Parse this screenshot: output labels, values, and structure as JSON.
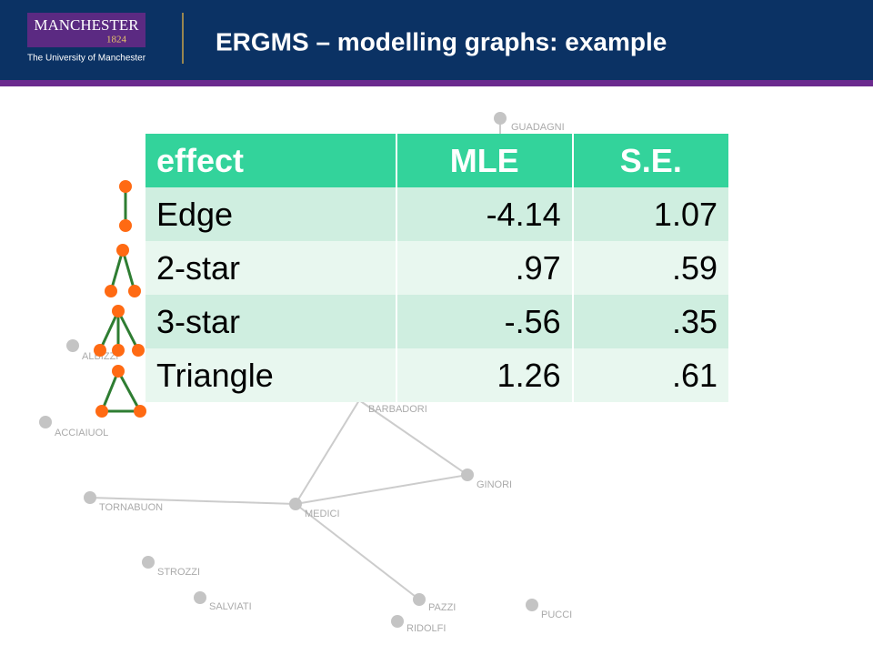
{
  "header": {
    "logo_name": "MANCHESTER",
    "logo_year": "1824",
    "logo_subtitle": "The University of Manchester",
    "title": "ERGMS – modelling graphs: example"
  },
  "table": {
    "columns": [
      "effect",
      "MLE",
      "S.E."
    ],
    "rows": [
      [
        "Edge",
        "-4.14",
        "1.07"
      ],
      [
        "2-star",
        ".97",
        ".59"
      ],
      [
        "3-star",
        "-.56",
        ".35"
      ],
      [
        "Triangle",
        "1.26",
        ".61"
      ]
    ]
  },
  "nodes": [
    {
      "label": "GUADAGNI"
    },
    {
      "label": "ALBIZZI"
    },
    {
      "label": "ACCIAIUOL"
    },
    {
      "label": "BARBADORI"
    },
    {
      "label": "GINORI"
    },
    {
      "label": "TORNABUON"
    },
    {
      "label": "MEDICI"
    },
    {
      "label": "STROZZI"
    },
    {
      "label": "SALVIATI"
    },
    {
      "label": "PAZZI"
    },
    {
      "label": "PUCCI"
    },
    {
      "label": "RIDOLFI"
    }
  ]
}
